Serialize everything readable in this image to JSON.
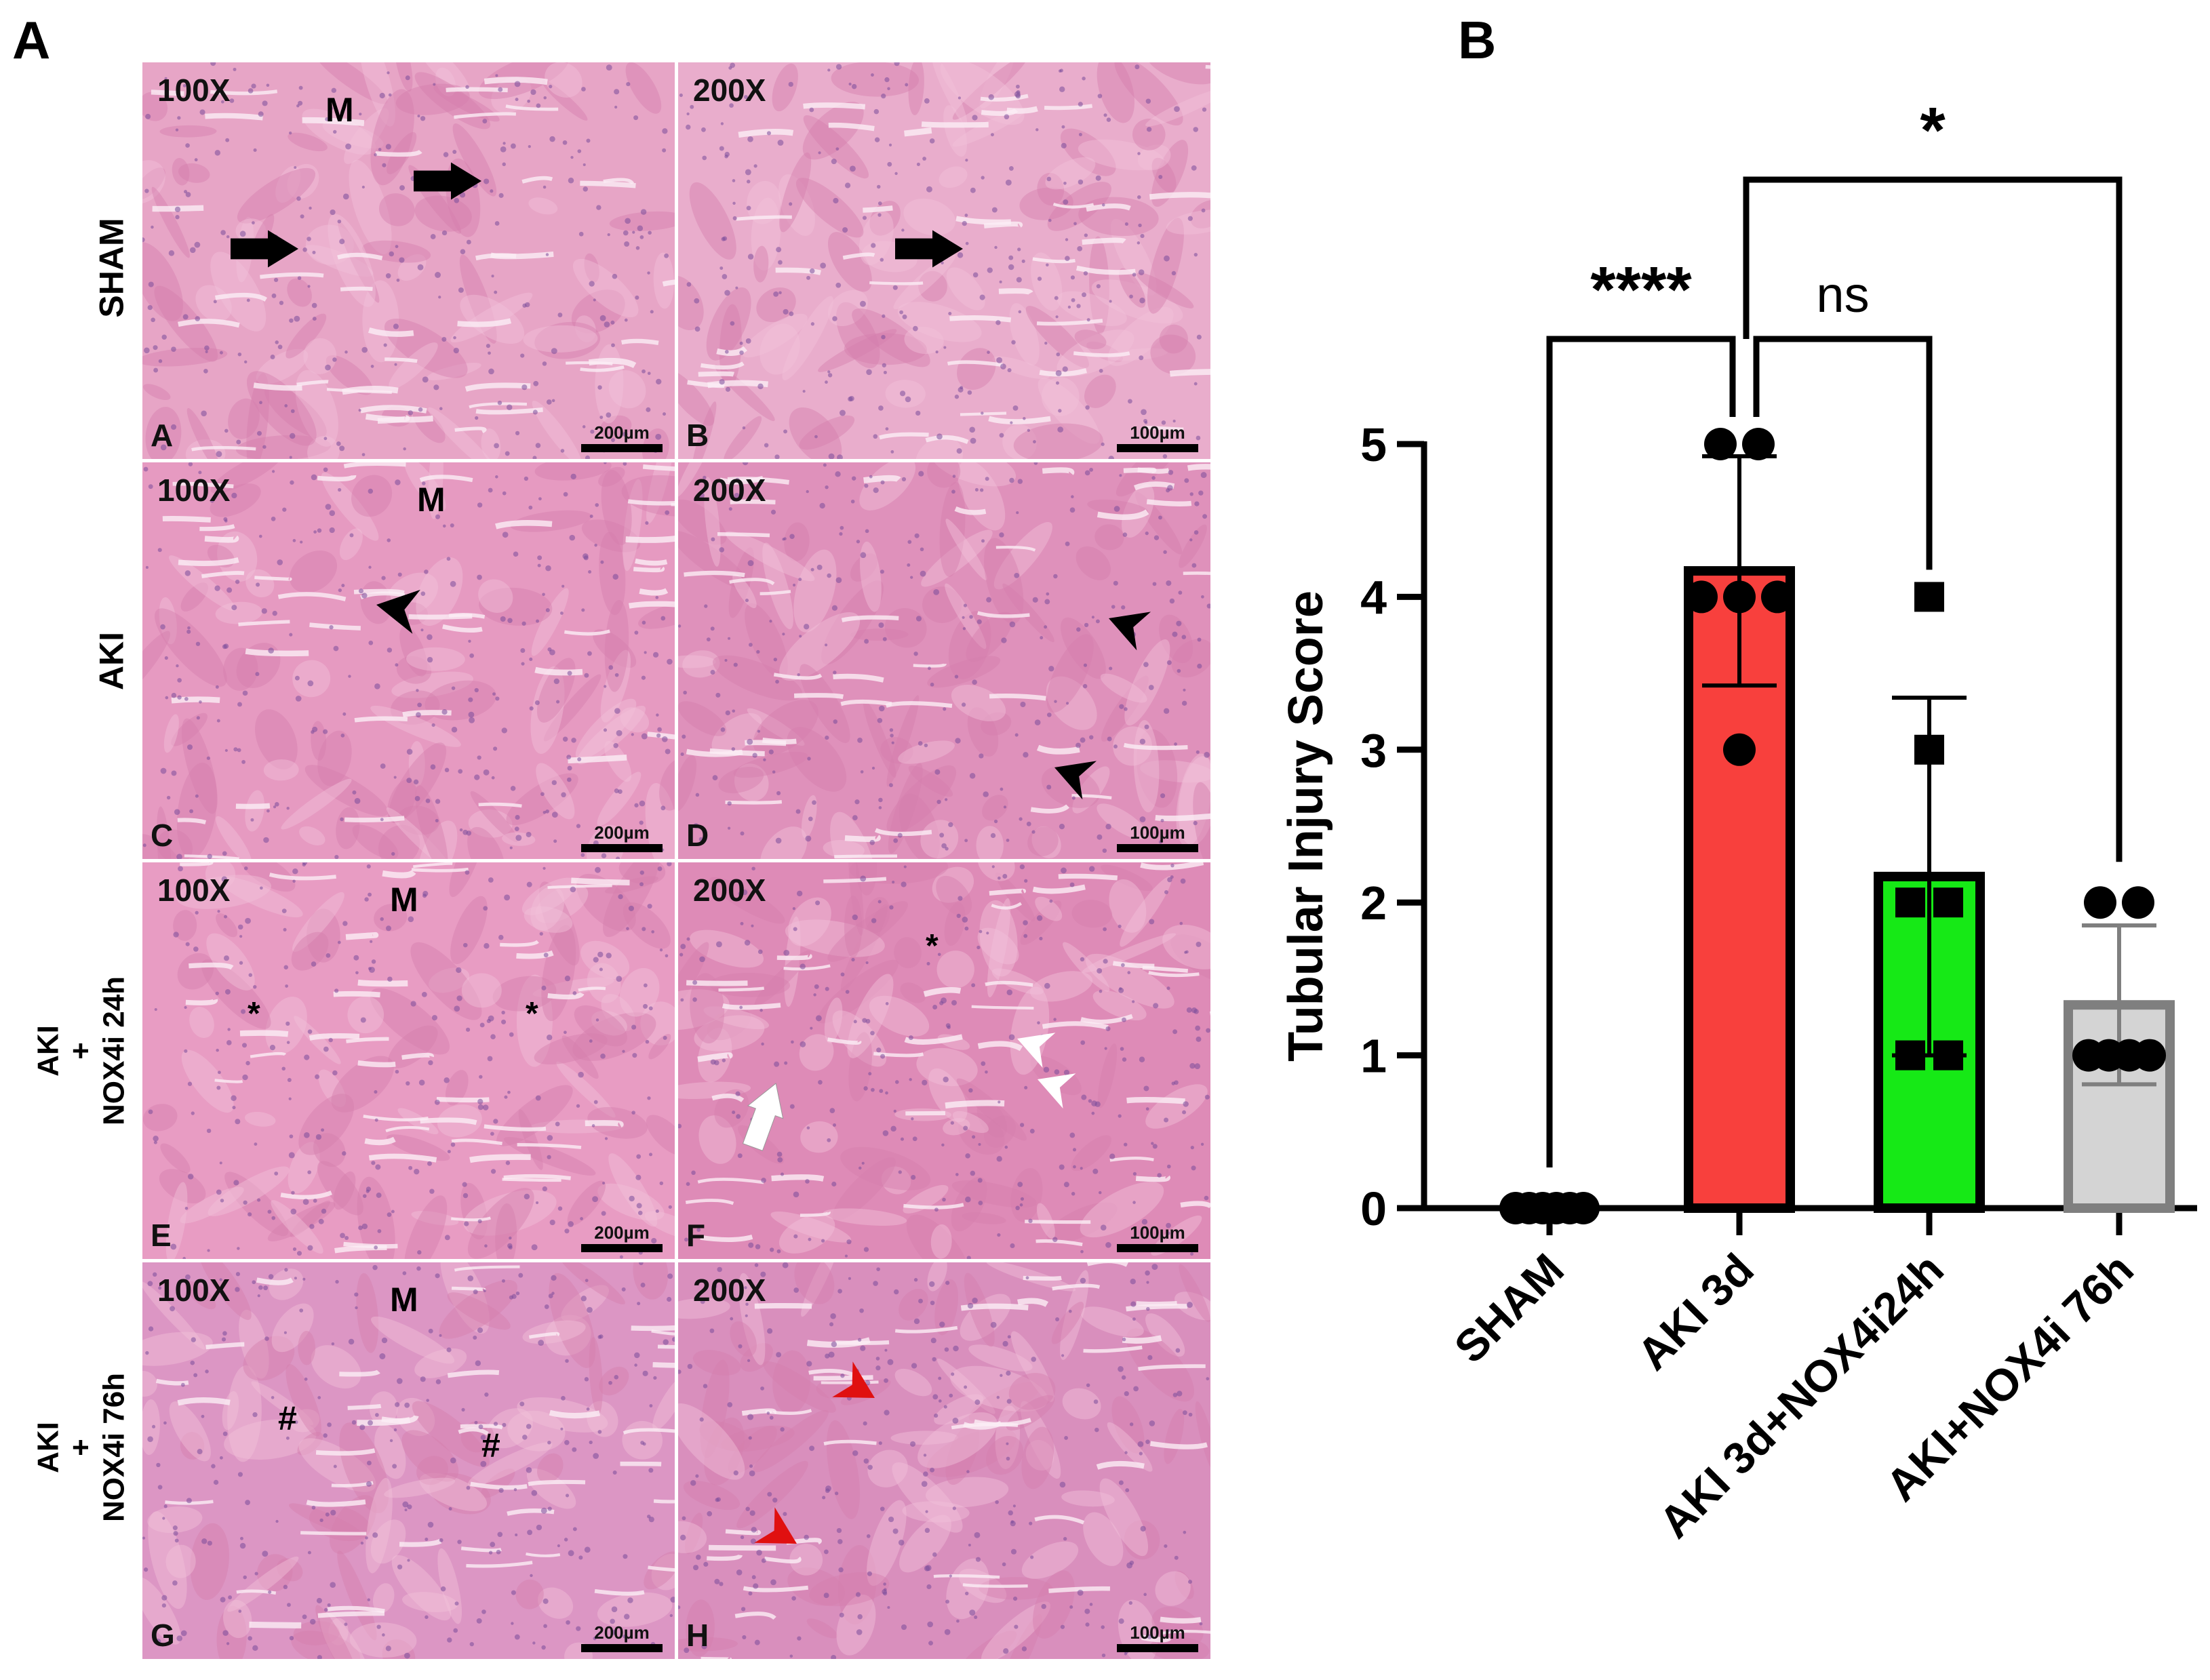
{
  "panel_a_label": "A",
  "panel_b_label": "B",
  "histology": {
    "row_labels": [
      [
        "SHAM"
      ],
      [
        "AKI"
      ],
      [
        "AKI",
        "+",
        "NOX4i 24h"
      ],
      [
        "AKI",
        "+",
        "NOX4i 76h"
      ]
    ],
    "tiles": [
      {
        "mag": "100X",
        "letter": "A",
        "scale": "200µm",
        "region": "M",
        "tint": "#e7a5c6"
      },
      {
        "mag": "200X",
        "letter": "B",
        "scale": "100µm",
        "region": "",
        "tint": "#e9adcc"
      },
      {
        "mag": "100X",
        "letter": "C",
        "scale": "200µm",
        "region": "M",
        "tint": "#e69ac1"
      },
      {
        "mag": "200X",
        "letter": "D",
        "scale": "100µm",
        "region": "",
        "tint": "#df91bb"
      },
      {
        "mag": "100X",
        "letter": "E",
        "scale": "200µm",
        "region": "M",
        "tint": "#e89cc3"
      },
      {
        "mag": "200X",
        "letter": "F",
        "scale": "100µm",
        "region": "",
        "tint": "#de8bb7"
      },
      {
        "mag": "100X",
        "letter": "G",
        "scale": "200µm",
        "region": "M",
        "tint": "#dc96c4"
      },
      {
        "mag": "200X",
        "letter": "H",
        "scale": "100µm",
        "region": "",
        "tint": "#d98fbd"
      }
    ],
    "markers": {
      "asterisk": "*",
      "hash": "#"
    },
    "colors": {
      "black_arrow": "#000000",
      "white_arrow": "#ffffff",
      "red_arrowhead": "#e01010"
    }
  },
  "chart_data": {
    "type": "bar",
    "ylabel": "Tubular Injury Score",
    "xlabel": "",
    "ylim": [
      0,
      5
    ],
    "yticks": [
      0,
      1,
      2,
      3,
      4,
      5
    ],
    "categories": [
      "SHAM",
      "AKI 3d",
      "AKI 3d+NOX4i24h",
      "AKI+NOX4i 76h"
    ],
    "values": [
      0,
      4.17,
      2.17,
      1.33
    ],
    "sd": [
      0,
      0.75,
      1.17,
      0.52
    ],
    "points": [
      [
        0,
        0,
        0,
        0,
        0,
        0
      ],
      [
        5,
        5,
        4,
        4,
        4,
        3
      ],
      [
        4,
        3,
        2,
        2,
        1,
        1
      ],
      [
        2,
        2,
        1,
        1,
        1,
        1
      ]
    ],
    "marker_shapes": [
      "circle",
      "circle",
      "square",
      "circle"
    ],
    "bar_fill": [
      "#ffffff",
      "#f8403d",
      "#16e916",
      "#d4d4d4"
    ],
    "bar_edge": [
      "#000000",
      "#000000",
      "#000000",
      "#7f7f7f"
    ],
    "significance": [
      {
        "from": 0,
        "to": 1,
        "label": "****"
      },
      {
        "from": 1,
        "to": 2,
        "label": "ns"
      },
      {
        "from": 1,
        "to": 3,
        "label": "*"
      }
    ],
    "grid": false
  }
}
